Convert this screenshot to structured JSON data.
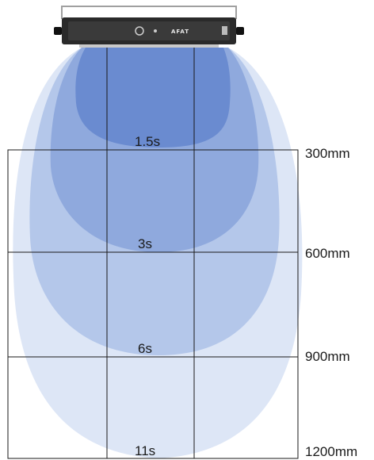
{
  "device": {
    "brand_text": "AFAT"
  },
  "colors": {
    "zone_1": "#6a8bd0",
    "zone_2": "#8fa9dd",
    "zone_3": "#b4c7ea",
    "zone_4": "#dde6f6",
    "grid_line": "#1a1a1a",
    "device_body": "#2a2a2a"
  },
  "zones": [
    {
      "time_label": "1.5s",
      "distance_label": "300mm"
    },
    {
      "time_label": "3s",
      "distance_label": "600mm"
    },
    {
      "time_label": "6s",
      "distance_label": "900mm"
    },
    {
      "time_label": "11s",
      "distance_label": "1200mm"
    }
  ]
}
